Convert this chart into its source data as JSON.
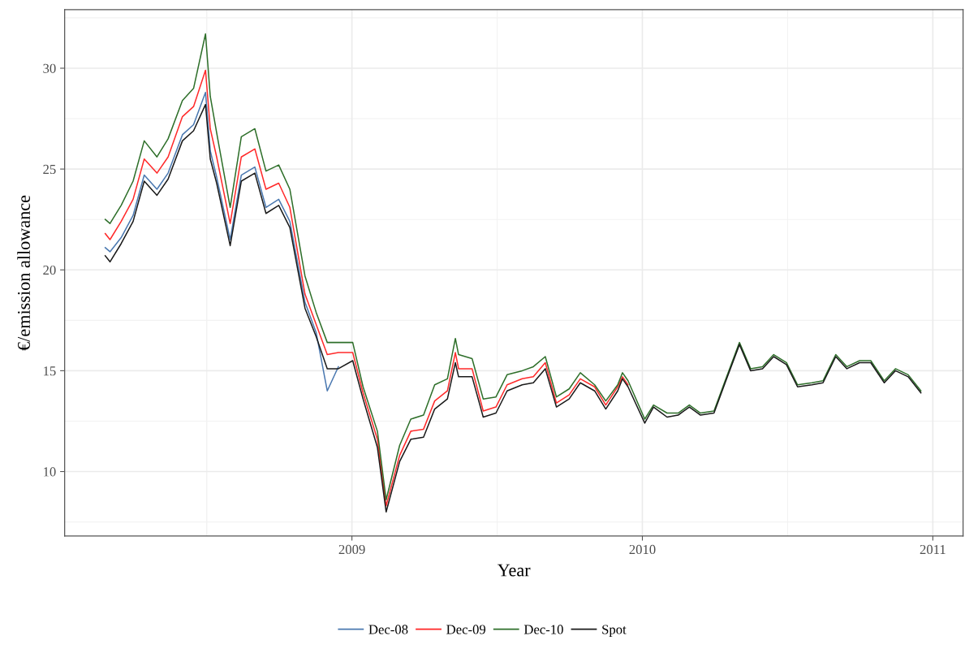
{
  "chart_data": {
    "type": "line",
    "xlabel": "Year",
    "ylabel": "€/emission allowance",
    "x": [
      "2008-02-26",
      "2008-03-03",
      "2008-03-17",
      "2008-04-01",
      "2008-04-15",
      "2008-05-01",
      "2008-05-15",
      "2008-06-02",
      "2008-06-16",
      "2008-07-01",
      "2008-07-07",
      "2008-07-15",
      "2008-08-01",
      "2008-08-15",
      "2008-09-01",
      "2008-09-15",
      "2008-10-01",
      "2008-10-15",
      "2008-11-03",
      "2008-11-17",
      "2008-12-01",
      "2008-12-15",
      "2009-01-02",
      "2009-01-15",
      "2009-02-02",
      "2009-02-13",
      "2009-03-02",
      "2009-03-16",
      "2009-04-01",
      "2009-04-15",
      "2009-05-01",
      "2009-05-11",
      "2009-05-15",
      "2009-06-01",
      "2009-06-15",
      "2009-07-01",
      "2009-07-15",
      "2009-08-03",
      "2009-08-17",
      "2009-09-01",
      "2009-09-15",
      "2009-10-01",
      "2009-10-15",
      "2009-11-02",
      "2009-11-16",
      "2009-12-01",
      "2009-12-07",
      "2009-12-14",
      "2010-01-04",
      "2010-01-15",
      "2010-02-01",
      "2010-02-15",
      "2010-03-01",
      "2010-03-15",
      "2010-04-01",
      "2010-04-15",
      "2010-05-03",
      "2010-05-17",
      "2010-06-01",
      "2010-06-15",
      "2010-07-01",
      "2010-07-15",
      "2010-08-02",
      "2010-08-16",
      "2010-09-01",
      "2010-09-15",
      "2010-10-01",
      "2010-10-15",
      "2010-11-01",
      "2010-11-15",
      "2010-12-01",
      "2010-12-17"
    ],
    "series": [
      {
        "name": "Dec-08",
        "color": "#4a78b0",
        "values": [
          21.1,
          20.9,
          21.6,
          22.7,
          24.7,
          24.0,
          24.8,
          26.7,
          27.2,
          28.8,
          25.9,
          24.6,
          21.5,
          24.7,
          25.1,
          23.1,
          23.5,
          22.4,
          18.4,
          16.9,
          14.0,
          15.2,
          null,
          null,
          null,
          null,
          null,
          null,
          null,
          null,
          null,
          null,
          null,
          null,
          null,
          null,
          null,
          null,
          null,
          null,
          null,
          null,
          null,
          null,
          null,
          null,
          null,
          null,
          null,
          null,
          null,
          null,
          null,
          null,
          null,
          null,
          null,
          null,
          null,
          null,
          null,
          null,
          null,
          null,
          null,
          null,
          null,
          null,
          null,
          null,
          null,
          null
        ]
      },
      {
        "name": "Dec-09",
        "color": "#ff2a2a",
        "values": [
          21.8,
          21.5,
          22.4,
          23.5,
          25.5,
          24.8,
          25.6,
          27.6,
          28.1,
          29.9,
          27.0,
          25.6,
          22.3,
          25.6,
          26.0,
          24.0,
          24.3,
          23.1,
          18.8,
          17.3,
          15.8,
          15.9,
          15.9,
          13.9,
          11.6,
          8.3,
          10.8,
          12.0,
          12.1,
          13.5,
          14.0,
          15.9,
          15.1,
          15.1,
          13.0,
          13.2,
          14.3,
          14.6,
          14.7,
          15.4,
          13.4,
          13.8,
          14.6,
          14.2,
          13.3,
          14.2,
          14.7,
          14.3,
          null,
          null,
          null,
          null,
          null,
          null,
          null,
          null,
          null,
          null,
          null,
          null,
          null,
          null,
          null,
          null,
          null,
          null,
          null,
          null,
          null,
          null,
          null,
          null
        ]
      },
      {
        "name": "Dec-10",
        "color": "#2e6f2a",
        "values": [
          22.5,
          22.3,
          23.2,
          24.4,
          26.4,
          25.6,
          26.5,
          28.4,
          29.0,
          31.7,
          28.6,
          26.8,
          23.1,
          26.6,
          27.0,
          24.9,
          25.2,
          24.0,
          19.7,
          17.9,
          16.4,
          16.4,
          16.4,
          14.2,
          12.0,
          8.6,
          11.3,
          12.6,
          12.8,
          14.3,
          14.6,
          16.6,
          15.8,
          15.6,
          13.6,
          13.7,
          14.8,
          15.0,
          15.2,
          15.7,
          13.7,
          14.1,
          14.9,
          14.3,
          13.5,
          14.3,
          14.9,
          14.5,
          12.6,
          13.3,
          12.9,
          12.9,
          13.3,
          12.9,
          13.0,
          14.5,
          16.4,
          15.1,
          15.2,
          15.8,
          15.4,
          14.3,
          14.4,
          14.5,
          15.8,
          15.2,
          15.5,
          15.5,
          14.5,
          15.1,
          14.8,
          14.0
        ]
      },
      {
        "name": "Spot",
        "color": "#1a1a1a",
        "values": [
          20.7,
          20.4,
          21.3,
          22.4,
          24.4,
          23.7,
          24.5,
          26.4,
          26.9,
          28.2,
          25.5,
          24.3,
          21.2,
          24.4,
          24.8,
          22.8,
          23.2,
          22.1,
          18.1,
          16.7,
          15.1,
          15.1,
          15.5,
          13.6,
          11.2,
          8.0,
          10.5,
          11.6,
          11.7,
          13.1,
          13.6,
          15.4,
          14.7,
          14.7,
          12.7,
          12.9,
          14.0,
          14.3,
          14.4,
          15.1,
          13.2,
          13.6,
          14.4,
          14.0,
          13.1,
          14.0,
          14.6,
          14.2,
          12.4,
          13.2,
          12.7,
          12.8,
          13.2,
          12.8,
          12.9,
          14.4,
          16.3,
          15.0,
          15.1,
          15.7,
          15.3,
          14.2,
          14.3,
          14.4,
          15.7,
          15.1,
          15.4,
          15.4,
          14.4,
          15.0,
          14.7,
          13.9
        ]
      }
    ],
    "xlim": [
      "2008-01-06",
      "2011-02-08"
    ],
    "xticks": [
      {
        "value": "2009-01-01",
        "label": "2009"
      },
      {
        "value": "2010-01-01",
        "label": "2010"
      },
      {
        "value": "2011-01-01",
        "label": "2011"
      }
    ],
    "ylim": [
      6.8,
      32.9
    ],
    "yticks": [
      10,
      15,
      20,
      25,
      30
    ],
    "grid": true,
    "legend": "bottom",
    "line_style": "solid",
    "marker": "none"
  }
}
